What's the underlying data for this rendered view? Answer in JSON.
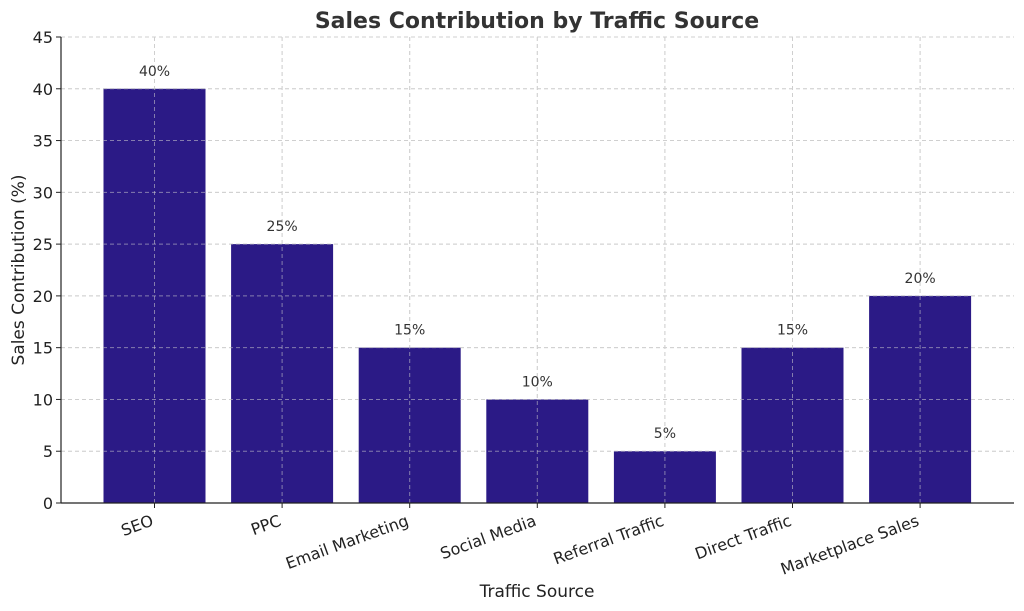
{
  "chart_data": {
    "type": "bar",
    "title": "Sales Contribution by Traffic Source",
    "xlabel": "Traffic Source",
    "ylabel": "Sales Contribution (%)",
    "categories": [
      "SEO",
      "PPC",
      "Email Marketing",
      "Social Media",
      "Referral Traffic",
      "Direct Traffic",
      "Marketplace Sales"
    ],
    "values": [
      40,
      25,
      15,
      10,
      5,
      15,
      20
    ],
    "data_labels": [
      "40%",
      "25%",
      "15%",
      "10%",
      "5%",
      "15%",
      "20%"
    ],
    "ylim": [
      0,
      45
    ],
    "yticks": [
      0,
      5,
      10,
      15,
      20,
      25,
      30,
      35,
      40,
      45
    ],
    "grid": true,
    "bar_color": "#2b1a86"
  }
}
